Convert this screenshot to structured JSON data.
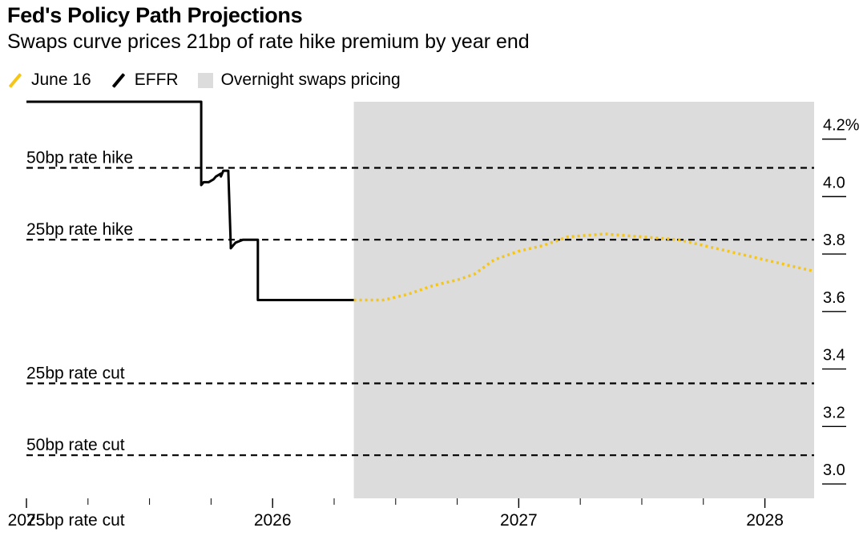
{
  "header": {
    "title": "Fed's Policy Path Projections",
    "subtitle": "Swaps curve prices 21bp of rate hike premium by year end"
  },
  "legend": [
    {
      "label": "June 16",
      "color": "#f5c518",
      "shape": "slash"
    },
    {
      "label": "EFFR",
      "color": "#000000",
      "shape": "slash"
    },
    {
      "label": "Overnight swaps pricing",
      "color": "#dcdcdc",
      "shape": "box"
    }
  ],
  "chart_data": {
    "type": "line",
    "title": "Fed's Policy Path Projections",
    "subtitle": "Swaps curve prices 21bp of rate hike premium by year end",
    "xlim": [
      2025.0,
      2028.2
    ],
    "ylim": [
      2.95,
      4.33
    ],
    "y_ticks": [
      {
        "value": 3.0,
        "label": "3.0"
      },
      {
        "value": 3.2,
        "label": "3.2"
      },
      {
        "value": 3.4,
        "label": "3.4"
      },
      {
        "value": 3.6,
        "label": "3.6"
      },
      {
        "value": 3.8,
        "label": "3.8"
      },
      {
        "value": 4.0,
        "label": "4.0"
      },
      {
        "value": 4.2,
        "label": "4.2%"
      }
    ],
    "x_ticks": [
      {
        "value": 2025.0,
        "label": "2025"
      },
      {
        "value": 2026.0,
        "label": "2026"
      },
      {
        "value": 2027.0,
        "label": "2027"
      },
      {
        "value": 2028.0,
        "label": "2028"
      }
    ],
    "shaded_region": {
      "label": "Overnight swaps pricing",
      "x_start": 2026.33,
      "x_end": 2028.2,
      "color": "#dcdcdc"
    },
    "reference_lines": [
      {
        "label": "50bp rate hike",
        "y": 4.1
      },
      {
        "label": "25bp rate hike",
        "y": 3.85
      },
      {
        "label": "25bp rate cut",
        "y": 3.35
      },
      {
        "label": "50bp rate cut",
        "y": 3.1
      },
      {
        "label": "75bp rate cut",
        "y": 2.85
      }
    ],
    "series": [
      {
        "name": "EFFR",
        "color": "#000000",
        "style": "solid-step",
        "x": [
          2025.0,
          2025.71,
          2025.71,
          2025.72,
          2025.73,
          2025.74,
          2025.76,
          2025.77,
          2025.79,
          2025.79,
          2025.8,
          2025.82,
          2025.83,
          2025.83,
          2025.84,
          2025.85,
          2025.88,
          2025.91,
          2025.92,
          2025.94,
          2025.94,
          2026.33
        ],
        "y": [
          4.33,
          4.33,
          4.04,
          4.05,
          4.05,
          4.05,
          4.06,
          4.07,
          4.08,
          4.07,
          4.09,
          4.09,
          3.83,
          3.82,
          3.83,
          3.84,
          3.85,
          3.85,
          3.85,
          3.85,
          3.64,
          3.64
        ]
      },
      {
        "name": "June 16",
        "color": "#f5c518",
        "style": "dotted",
        "x": [
          2026.33,
          2026.45,
          2026.55,
          2026.65,
          2026.75,
          2026.82,
          2026.9,
          2027.0,
          2027.1,
          2027.2,
          2027.35,
          2027.5,
          2027.65,
          2027.8,
          2027.95,
          2028.1,
          2028.2
        ],
        "y": [
          3.64,
          3.64,
          3.66,
          3.69,
          3.71,
          3.73,
          3.78,
          3.81,
          3.83,
          3.86,
          3.87,
          3.86,
          3.85,
          3.82,
          3.79,
          3.76,
          3.74
        ]
      }
    ]
  }
}
